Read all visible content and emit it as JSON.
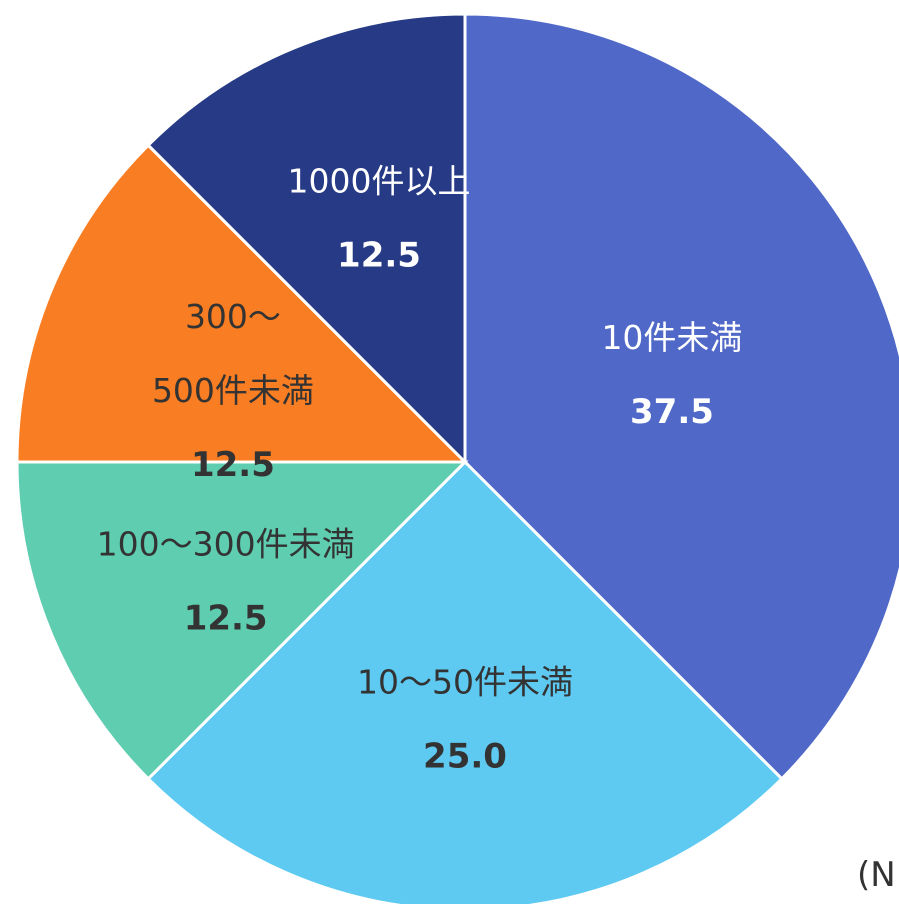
{
  "chart_data": {
    "type": "pie",
    "start_angle": "12 o'clock",
    "direction": "clockwise",
    "slice_border_color": "#ffffff",
    "slices": [
      {
        "label": "10件未満",
        "label_lines": [
          "10件未満"
        ],
        "value": 37.5,
        "display": "37.5",
        "color": "#5068C8",
        "text_color": "#ffffff"
      },
      {
        "label": "10〜50件未満",
        "label_lines": [
          "10〜50件未満"
        ],
        "value": 25.0,
        "display": "25.0",
        "color": "#5ECAF2",
        "text_color": "#333333"
      },
      {
        "label": "100〜300件未満",
        "label_lines": [
          "100〜300件未満"
        ],
        "value": 12.5,
        "display": "12.5",
        "color": "#5ECDB0",
        "text_color": "#333333"
      },
      {
        "label": "300〜500件未満",
        "label_lines": [
          "300〜",
          "500件未満"
        ],
        "value": 12.5,
        "display": "12.5",
        "color": "#F97D22",
        "text_color": "#333333"
      },
      {
        "label": "1000件以上",
        "label_lines": [
          "1000件以上"
        ],
        "value": 12.5,
        "display": "12.5",
        "color": "#263A85",
        "text_color": "#ffffff"
      }
    ],
    "note": "(N"
  }
}
